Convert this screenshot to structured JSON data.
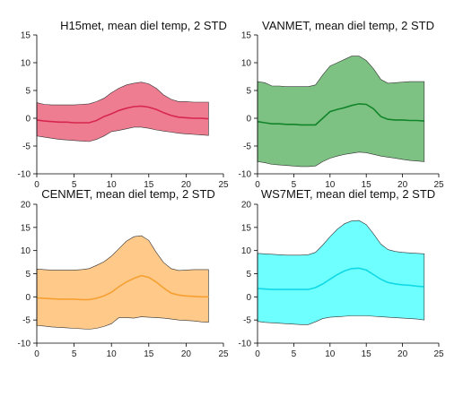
{
  "chart_data": [
    {
      "type": "area",
      "title": "H15met, mean diel temp, 2 STD",
      "xlabel": "",
      "ylabel": "",
      "xlim": [
        0,
        25
      ],
      "ylim": [
        -10,
        15
      ],
      "xticks": [
        0,
        5,
        10,
        15,
        20,
        25
      ],
      "yticks": [
        -10,
        -5,
        0,
        5,
        10,
        15
      ],
      "colors": {
        "band": "#ee7d92",
        "mean": "#d8274e"
      },
      "x": [
        0,
        1,
        2,
        3,
        4,
        5,
        6,
        7,
        8,
        9,
        10,
        11,
        12,
        13,
        14,
        15,
        16,
        17,
        18,
        19,
        20,
        21,
        22,
        23
      ],
      "series": [
        {
          "role": "mean",
          "values": [
            -0.3,
            -0.5,
            -0.6,
            -0.7,
            -0.7,
            -0.8,
            -0.8,
            -0.8,
            -0.4,
            0.3,
            0.8,
            1.4,
            1.8,
            2.1,
            2.2,
            2.0,
            1.6,
            1.0,
            0.5,
            0.2,
            0.1,
            0.0,
            0.0,
            -0.1
          ]
        },
        {
          "role": "upper",
          "values": [
            2.8,
            2.5,
            2.4,
            2.4,
            2.4,
            2.4,
            2.5,
            2.6,
            3.0,
            3.6,
            4.6,
            5.4,
            6.0,
            6.3,
            6.5,
            6.2,
            5.4,
            4.2,
            3.4,
            3.0,
            3.0,
            2.9,
            2.9,
            2.9
          ]
        },
        {
          "role": "lower",
          "values": [
            -3.2,
            -3.4,
            -3.6,
            -3.8,
            -3.9,
            -4.0,
            -4.1,
            -4.2,
            -3.8,
            -3.2,
            -2.4,
            -2.2,
            -1.9,
            -1.6,
            -1.6,
            -1.8,
            -2.1,
            -2.3,
            -2.5,
            -2.7,
            -2.8,
            -2.9,
            -3.0,
            -3.1
          ]
        }
      ]
    },
    {
      "type": "area",
      "title": "VANMET, mean diel temp, 2 STD",
      "xlabel": "",
      "ylabel": "",
      "xlim": [
        0,
        25
      ],
      "ylim": [
        -10,
        15
      ],
      "xticks": [
        0,
        5,
        10,
        15,
        20,
        25
      ],
      "yticks": [
        -10,
        -5,
        0,
        5,
        10,
        15
      ],
      "colors": {
        "band": "#7dc283",
        "mean": "#12852a"
      },
      "x": [
        0,
        1,
        2,
        3,
        4,
        5,
        6,
        7,
        8,
        9,
        10,
        11,
        12,
        13,
        14,
        15,
        16,
        17,
        18,
        19,
        20,
        21,
        22,
        23
      ],
      "series": [
        {
          "role": "mean",
          "values": [
            -0.6,
            -0.8,
            -1.0,
            -1.0,
            -1.1,
            -1.1,
            -1.2,
            -1.2,
            -1.2,
            0.0,
            1.2,
            1.6,
            1.9,
            2.3,
            2.6,
            2.5,
            1.7,
            0.3,
            -0.2,
            -0.3,
            -0.3,
            -0.4,
            -0.4,
            -0.5
          ]
        },
        {
          "role": "upper",
          "values": [
            6.6,
            6.4,
            5.8,
            5.8,
            5.7,
            5.7,
            5.7,
            5.7,
            6.0,
            7.8,
            9.4,
            10.0,
            10.6,
            11.2,
            11.2,
            10.4,
            8.9,
            7.0,
            6.3,
            6.4,
            6.5,
            6.6,
            6.6,
            6.6
          ]
        },
        {
          "role": "lower",
          "values": [
            -7.8,
            -8.0,
            -8.3,
            -8.4,
            -8.5,
            -8.6,
            -8.7,
            -8.7,
            -8.6,
            -7.8,
            -7.2,
            -6.8,
            -6.5,
            -6.3,
            -6.1,
            -6.2,
            -6.5,
            -6.8,
            -7.0,
            -7.2,
            -7.4,
            -7.6,
            -7.7,
            -7.8
          ]
        }
      ]
    },
    {
      "type": "area",
      "title": "CENMET, mean diel temp, 2 STD",
      "xlabel": "",
      "ylabel": "",
      "xlim": [
        0,
        25
      ],
      "ylim": [
        -10,
        20
      ],
      "xticks": [
        0,
        5,
        10,
        15,
        20,
        25
      ],
      "yticks": [
        -10,
        -5,
        0,
        5,
        10,
        15,
        20
      ],
      "colors": {
        "band": "#fec989",
        "mean": "#f5a031"
      },
      "x": [
        0,
        1,
        2,
        3,
        4,
        5,
        6,
        7,
        8,
        9,
        10,
        11,
        12,
        13,
        14,
        15,
        16,
        17,
        18,
        19,
        20,
        21,
        22,
        23
      ],
      "series": [
        {
          "role": "mean",
          "values": [
            -0.2,
            -0.3,
            -0.4,
            -0.5,
            -0.5,
            -0.5,
            -0.6,
            -0.6,
            -0.3,
            0.2,
            1.0,
            2.2,
            3.2,
            4.0,
            4.6,
            4.2,
            3.2,
            1.9,
            0.8,
            0.4,
            0.2,
            0.1,
            0.0,
            0.0
          ]
        },
        {
          "role": "upper",
          "values": [
            6.0,
            5.9,
            5.8,
            5.8,
            5.8,
            5.8,
            5.9,
            6.1,
            6.8,
            7.6,
            8.8,
            10.4,
            12.0,
            13.0,
            13.2,
            12.2,
            9.6,
            7.4,
            6.1,
            5.7,
            5.8,
            5.9,
            5.9,
            5.9
          ]
        },
        {
          "role": "lower",
          "values": [
            -6.2,
            -6.3,
            -6.5,
            -6.6,
            -6.7,
            -6.8,
            -6.9,
            -7.0,
            -6.8,
            -6.4,
            -5.8,
            -4.5,
            -4.5,
            -4.6,
            -4.3,
            -4.4,
            -4.5,
            -4.6,
            -4.8,
            -5.0,
            -5.1,
            -5.2,
            -5.4,
            -5.5
          ]
        }
      ]
    },
    {
      "type": "area",
      "title": "WS7MET, mean diel temp, 2 STD",
      "xlabel": "",
      "ylabel": "",
      "xlim": [
        0,
        25
      ],
      "ylim": [
        -10,
        20
      ],
      "xticks": [
        0,
        5,
        10,
        15,
        20,
        25
      ],
      "yticks": [
        -10,
        -5,
        0,
        5,
        10,
        15,
        20
      ],
      "colors": {
        "band": "#6effff",
        "mean": "#10d9e6"
      },
      "x": [
        0,
        1,
        2,
        3,
        4,
        5,
        6,
        7,
        8,
        9,
        10,
        11,
        12,
        13,
        14,
        15,
        16,
        17,
        18,
        19,
        20,
        21,
        22,
        23
      ],
      "series": [
        {
          "role": "mean",
          "values": [
            1.8,
            1.7,
            1.6,
            1.6,
            1.6,
            1.6,
            1.6,
            1.6,
            2.0,
            2.8,
            3.8,
            4.8,
            5.6,
            6.1,
            6.2,
            5.8,
            4.8,
            3.8,
            3.1,
            2.8,
            2.6,
            2.5,
            2.3,
            2.2
          ]
        },
        {
          "role": "upper",
          "values": [
            9.4,
            9.3,
            9.2,
            9.1,
            9.0,
            9.0,
            9.0,
            9.1,
            9.6,
            11.2,
            13.0,
            14.6,
            15.8,
            16.4,
            16.5,
            15.6,
            13.6,
            11.4,
            10.2,
            9.8,
            9.6,
            9.5,
            9.4,
            9.3
          ]
        },
        {
          "role": "lower",
          "values": [
            -5.3,
            -5.5,
            -5.6,
            -5.7,
            -5.8,
            -5.9,
            -6.0,
            -6.0,
            -5.4,
            -4.7,
            -4.4,
            -4.3,
            -4.2,
            -4.1,
            -4.1,
            -4.1,
            -4.2,
            -4.3,
            -4.4,
            -4.5,
            -4.6,
            -4.7,
            -4.8,
            -5.0
          ]
        }
      ]
    }
  ]
}
